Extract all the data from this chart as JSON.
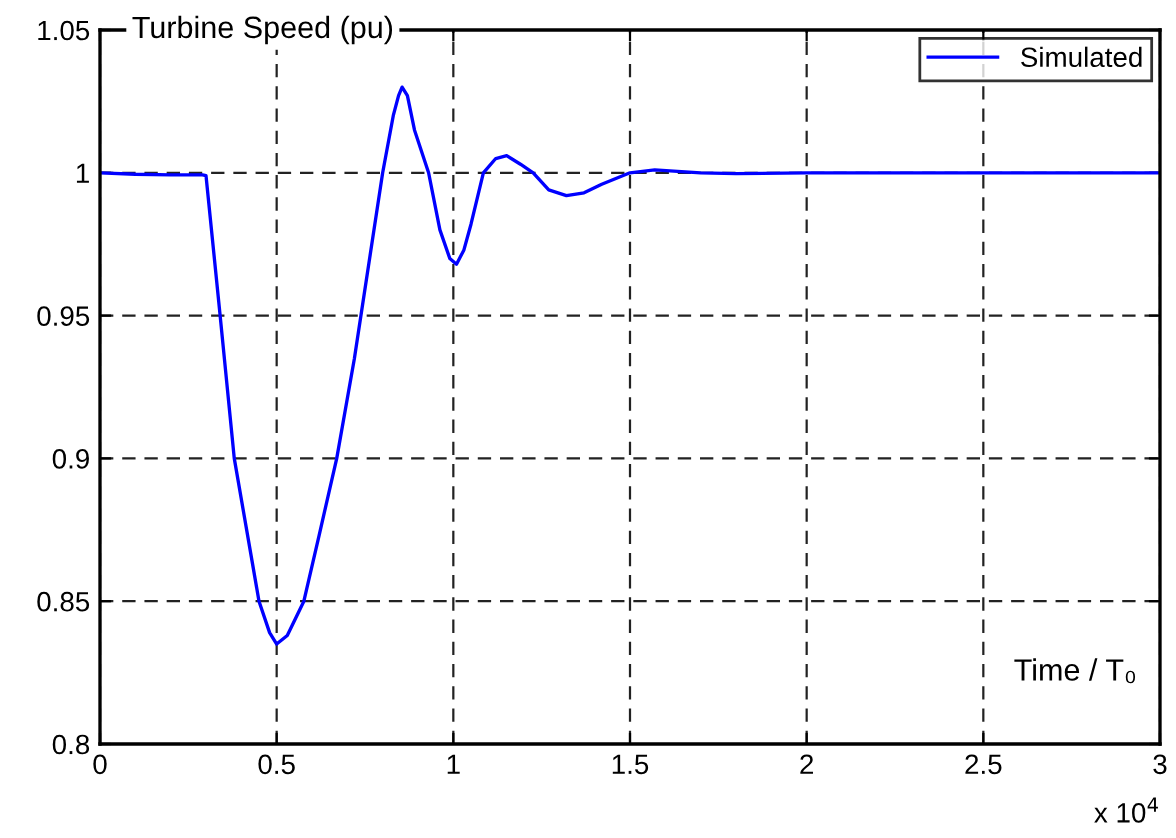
{
  "chart_data": {
    "type": "line",
    "title": "Turbine Speed (pu)",
    "annotations": [
      "x 10$^{4}$",
      "Time / T₀"
    ],
    "x": [
      0,
      0.1,
      0.2,
      0.29,
      0.3,
      0.34,
      0.38,
      0.45,
      0.48,
      0.5,
      0.53,
      0.577,
      0.62,
      0.67,
      0.72,
      0.8,
      0.83,
      0.845,
      0.855,
      0.87,
      0.89,
      0.93,
      0.962,
      0.99,
      1.009,
      1.03,
      1.05,
      1.085,
      1.12,
      1.151,
      1.19,
      1.226,
      1.27,
      1.32,
      1.37,
      1.42,
      1.5,
      1.57,
      1.7,
      1.8,
      2,
      2.3,
      2.6,
      3
    ],
    "series": [
      {
        "name": "Simulated",
        "color": "#0000ff",
        "values": [
          1.0,
          0.9995,
          0.9993,
          0.9993,
          0.999,
          0.95,
          0.9,
          0.85,
          0.839,
          0.835,
          0.838,
          0.85,
          0.873,
          0.9,
          0.935,
          1.0,
          1.02,
          1.027,
          1.03,
          1.027,
          1.015,
          1.0,
          0.98,
          0.97,
          0.968,
          0.973,
          0.982,
          1.0,
          1.005,
          1.006,
          1.003,
          1.0,
          0.994,
          0.992,
          0.993,
          0.996,
          1.0,
          1.001,
          1.0,
          0.9997,
          1.0,
          1.0,
          1.0,
          1.0
        ]
      }
    ],
    "xlim": [
      0,
      3
    ],
    "xticks": [
      0,
      0.5,
      1,
      1.5,
      2,
      2.5,
      3
    ],
    "ylim": [
      0.8,
      1.05
    ],
    "yticks": [
      0.8,
      0.85,
      0.9,
      0.95,
      1,
      1.05
    ],
    "grid": true,
    "legend": "top right",
    "line_style": "solid",
    "marker": "none"
  }
}
